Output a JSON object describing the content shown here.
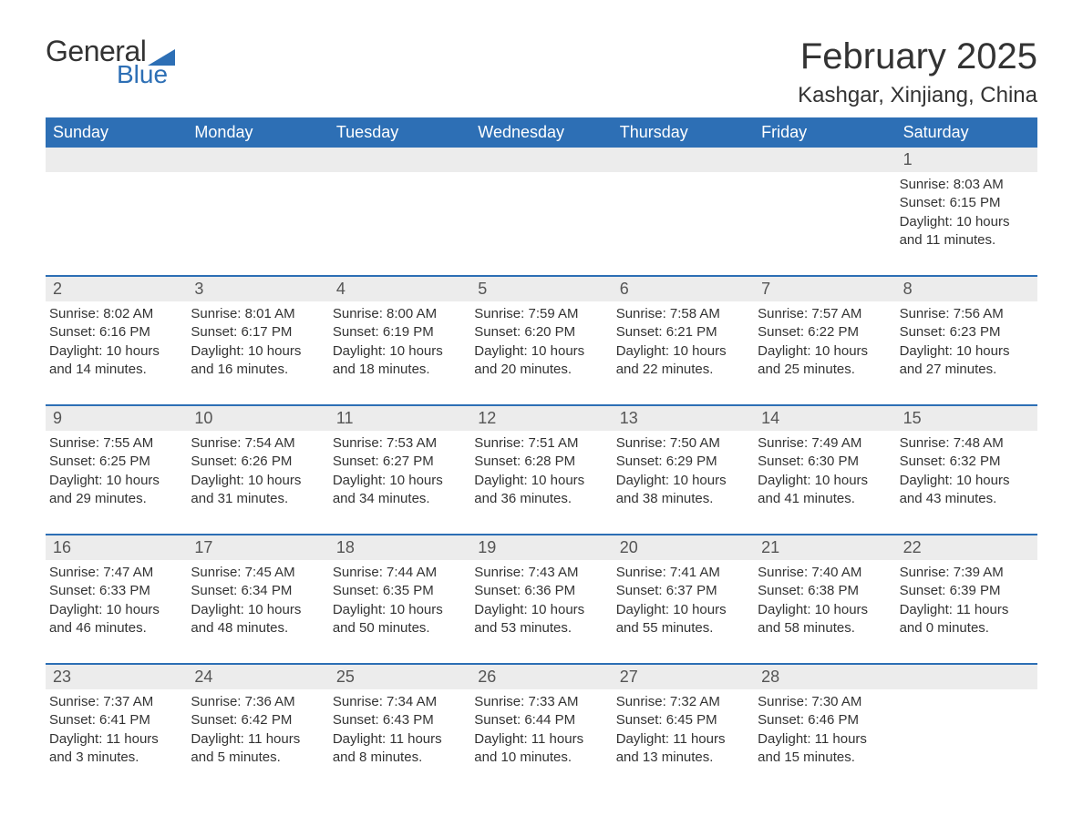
{
  "logo": {
    "word1": "General",
    "word2": "Blue"
  },
  "title": "February 2025",
  "location": "Kashgar, Xinjiang, China",
  "colors": {
    "header_bg": "#2d6fb5",
    "header_text": "#ffffff",
    "daynum_bg": "#ececec",
    "rule": "#2d6fb5",
    "text": "#333333"
  },
  "days_of_week": [
    "Sunday",
    "Monday",
    "Tuesday",
    "Wednesday",
    "Thursday",
    "Friday",
    "Saturday"
  ],
  "weeks": [
    [
      {
        "n": "",
        "sunrise": "",
        "sunset": "",
        "daylight": ""
      },
      {
        "n": "",
        "sunrise": "",
        "sunset": "",
        "daylight": ""
      },
      {
        "n": "",
        "sunrise": "",
        "sunset": "",
        "daylight": ""
      },
      {
        "n": "",
        "sunrise": "",
        "sunset": "",
        "daylight": ""
      },
      {
        "n": "",
        "sunrise": "",
        "sunset": "",
        "daylight": ""
      },
      {
        "n": "",
        "sunrise": "",
        "sunset": "",
        "daylight": ""
      },
      {
        "n": "1",
        "sunrise": "Sunrise: 8:03 AM",
        "sunset": "Sunset: 6:15 PM",
        "daylight": "Daylight: 10 hours and 11 minutes."
      }
    ],
    [
      {
        "n": "2",
        "sunrise": "Sunrise: 8:02 AM",
        "sunset": "Sunset: 6:16 PM",
        "daylight": "Daylight: 10 hours and 14 minutes."
      },
      {
        "n": "3",
        "sunrise": "Sunrise: 8:01 AM",
        "sunset": "Sunset: 6:17 PM",
        "daylight": "Daylight: 10 hours and 16 minutes."
      },
      {
        "n": "4",
        "sunrise": "Sunrise: 8:00 AM",
        "sunset": "Sunset: 6:19 PM",
        "daylight": "Daylight: 10 hours and 18 minutes."
      },
      {
        "n": "5",
        "sunrise": "Sunrise: 7:59 AM",
        "sunset": "Sunset: 6:20 PM",
        "daylight": "Daylight: 10 hours and 20 minutes."
      },
      {
        "n": "6",
        "sunrise": "Sunrise: 7:58 AM",
        "sunset": "Sunset: 6:21 PM",
        "daylight": "Daylight: 10 hours and 22 minutes."
      },
      {
        "n": "7",
        "sunrise": "Sunrise: 7:57 AM",
        "sunset": "Sunset: 6:22 PM",
        "daylight": "Daylight: 10 hours and 25 minutes."
      },
      {
        "n": "8",
        "sunrise": "Sunrise: 7:56 AM",
        "sunset": "Sunset: 6:23 PM",
        "daylight": "Daylight: 10 hours and 27 minutes."
      }
    ],
    [
      {
        "n": "9",
        "sunrise": "Sunrise: 7:55 AM",
        "sunset": "Sunset: 6:25 PM",
        "daylight": "Daylight: 10 hours and 29 minutes."
      },
      {
        "n": "10",
        "sunrise": "Sunrise: 7:54 AM",
        "sunset": "Sunset: 6:26 PM",
        "daylight": "Daylight: 10 hours and 31 minutes."
      },
      {
        "n": "11",
        "sunrise": "Sunrise: 7:53 AM",
        "sunset": "Sunset: 6:27 PM",
        "daylight": "Daylight: 10 hours and 34 minutes."
      },
      {
        "n": "12",
        "sunrise": "Sunrise: 7:51 AM",
        "sunset": "Sunset: 6:28 PM",
        "daylight": "Daylight: 10 hours and 36 minutes."
      },
      {
        "n": "13",
        "sunrise": "Sunrise: 7:50 AM",
        "sunset": "Sunset: 6:29 PM",
        "daylight": "Daylight: 10 hours and 38 minutes."
      },
      {
        "n": "14",
        "sunrise": "Sunrise: 7:49 AM",
        "sunset": "Sunset: 6:30 PM",
        "daylight": "Daylight: 10 hours and 41 minutes."
      },
      {
        "n": "15",
        "sunrise": "Sunrise: 7:48 AM",
        "sunset": "Sunset: 6:32 PM",
        "daylight": "Daylight: 10 hours and 43 minutes."
      }
    ],
    [
      {
        "n": "16",
        "sunrise": "Sunrise: 7:47 AM",
        "sunset": "Sunset: 6:33 PM",
        "daylight": "Daylight: 10 hours and 46 minutes."
      },
      {
        "n": "17",
        "sunrise": "Sunrise: 7:45 AM",
        "sunset": "Sunset: 6:34 PM",
        "daylight": "Daylight: 10 hours and 48 minutes."
      },
      {
        "n": "18",
        "sunrise": "Sunrise: 7:44 AM",
        "sunset": "Sunset: 6:35 PM",
        "daylight": "Daylight: 10 hours and 50 minutes."
      },
      {
        "n": "19",
        "sunrise": "Sunrise: 7:43 AM",
        "sunset": "Sunset: 6:36 PM",
        "daylight": "Daylight: 10 hours and 53 minutes."
      },
      {
        "n": "20",
        "sunrise": "Sunrise: 7:41 AM",
        "sunset": "Sunset: 6:37 PM",
        "daylight": "Daylight: 10 hours and 55 minutes."
      },
      {
        "n": "21",
        "sunrise": "Sunrise: 7:40 AM",
        "sunset": "Sunset: 6:38 PM",
        "daylight": "Daylight: 10 hours and 58 minutes."
      },
      {
        "n": "22",
        "sunrise": "Sunrise: 7:39 AM",
        "sunset": "Sunset: 6:39 PM",
        "daylight": "Daylight: 11 hours and 0 minutes."
      }
    ],
    [
      {
        "n": "23",
        "sunrise": "Sunrise: 7:37 AM",
        "sunset": "Sunset: 6:41 PM",
        "daylight": "Daylight: 11 hours and 3 minutes."
      },
      {
        "n": "24",
        "sunrise": "Sunrise: 7:36 AM",
        "sunset": "Sunset: 6:42 PM",
        "daylight": "Daylight: 11 hours and 5 minutes."
      },
      {
        "n": "25",
        "sunrise": "Sunrise: 7:34 AM",
        "sunset": "Sunset: 6:43 PM",
        "daylight": "Daylight: 11 hours and 8 minutes."
      },
      {
        "n": "26",
        "sunrise": "Sunrise: 7:33 AM",
        "sunset": "Sunset: 6:44 PM",
        "daylight": "Daylight: 11 hours and 10 minutes."
      },
      {
        "n": "27",
        "sunrise": "Sunrise: 7:32 AM",
        "sunset": "Sunset: 6:45 PM",
        "daylight": "Daylight: 11 hours and 13 minutes."
      },
      {
        "n": "28",
        "sunrise": "Sunrise: 7:30 AM",
        "sunset": "Sunset: 6:46 PM",
        "daylight": "Daylight: 11 hours and 15 minutes."
      },
      {
        "n": "",
        "sunrise": "",
        "sunset": "",
        "daylight": ""
      }
    ]
  ]
}
